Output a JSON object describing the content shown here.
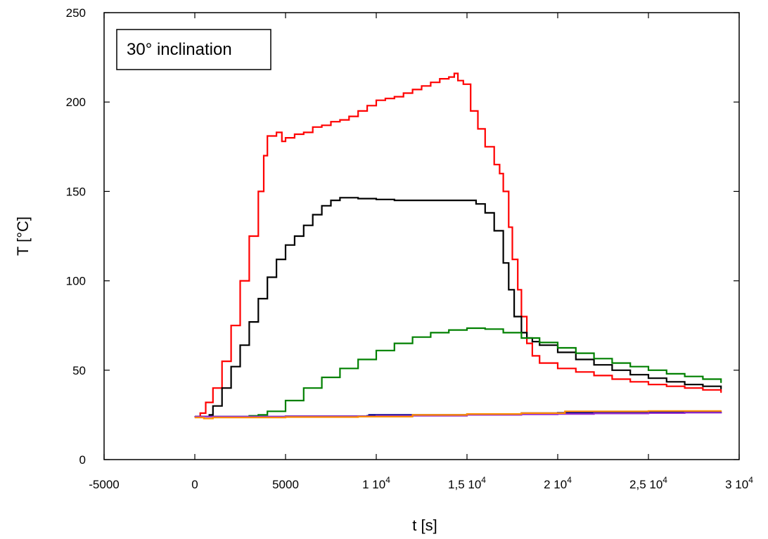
{
  "chart_data": {
    "type": "line",
    "title": "",
    "annotation": "30° inclination",
    "xlabel": "t  [s]",
    "ylabel": "T [°C]",
    "xlim": [
      -5000,
      30000
    ],
    "ylim": [
      0,
      250
    ],
    "grid": false,
    "x_ticks": [
      {
        "value": -5000,
        "label": "-5000"
      },
      {
        "value": 0,
        "label": "0"
      },
      {
        "value": 5000,
        "label": "5000"
      },
      {
        "value": 10000,
        "label": "1 10",
        "exp": "4"
      },
      {
        "value": 15000,
        "label": "1,5 10",
        "exp": "4"
      },
      {
        "value": 20000,
        "label": "2 10",
        "exp": "4"
      },
      {
        "value": 25000,
        "label": "2,5 10",
        "exp": "4"
      },
      {
        "value": 30000,
        "label": "3 10",
        "exp": "4"
      }
    ],
    "y_ticks": [
      {
        "value": 0,
        "label": "0"
      },
      {
        "value": 50,
        "label": "50"
      },
      {
        "value": 100,
        "label": "100"
      },
      {
        "value": 150,
        "label": "150"
      },
      {
        "value": 200,
        "label": "200"
      },
      {
        "value": 250,
        "label": "250"
      }
    ],
    "series": [
      {
        "color": "#ff0000",
        "x": [
          0,
          300,
          600,
          1000,
          1500,
          2000,
          2500,
          3000,
          3500,
          3800,
          4000,
          4500,
          4800,
          5000,
          5500,
          6000,
          6500,
          7000,
          7500,
          8000,
          8500,
          9000,
          9500,
          10000,
          10500,
          11000,
          11500,
          12000,
          12500,
          13000,
          13500,
          14000,
          14300,
          14500,
          14800,
          15200,
          15600,
          16000,
          16500,
          16800,
          17000,
          17300,
          17500,
          17800,
          18000,
          18300,
          18600,
          19000,
          20000,
          21000,
          22000,
          23000,
          24000,
          25000,
          26000,
          27000,
          28000,
          29000
        ],
        "y": [
          24,
          26,
          32,
          40,
          55,
          75,
          100,
          125,
          150,
          170,
          181,
          183,
          178,
          180,
          182,
          183,
          186,
          187,
          189,
          190,
          192,
          195,
          198,
          201,
          202,
          203,
          205,
          207,
          209,
          211,
          213,
          214,
          216,
          212,
          210,
          195,
          185,
          175,
          165,
          160,
          150,
          130,
          112,
          95,
          80,
          65,
          58,
          54,
          51,
          49,
          47,
          45,
          43.5,
          42,
          41,
          40,
          39,
          37.5
        ]
      },
      {
        "color": "#000000",
        "x": [
          0,
          500,
          800,
          1000,
          1500,
          2000,
          2500,
          3000,
          3500,
          4000,
          4500,
          5000,
          5500,
          6000,
          6500,
          7000,
          7500,
          8000,
          8500,
          9000,
          10000,
          11000,
          12000,
          13000,
          14000,
          15000,
          15500,
          16000,
          16500,
          17000,
          17300,
          17600,
          18000,
          18300,
          18600,
          19000,
          20000,
          21000,
          22000,
          23000,
          24000,
          25000,
          26000,
          27000,
          28000,
          29000
        ],
        "y": [
          24,
          24,
          25,
          30,
          40,
          52,
          64,
          77,
          90,
          102,
          112,
          120,
          125,
          131,
          137,
          142,
          145,
          146.5,
          146.5,
          146,
          145.5,
          145,
          145,
          145,
          145,
          145,
          143,
          138,
          128,
          110,
          95,
          80,
          71,
          68,
          66,
          64,
          60,
          56,
          53,
          50,
          47.5,
          45.5,
          43.5,
          42,
          41,
          39.5
        ]
      },
      {
        "color": "#008000",
        "x": [
          0,
          2000,
          3000,
          3500,
          4000,
          5000,
          6000,
          7000,
          8000,
          9000,
          10000,
          11000,
          12000,
          13000,
          14000,
          15000,
          16000,
          17000,
          18000,
          19000,
          20000,
          21000,
          22000,
          23000,
          24000,
          25000,
          26000,
          27000,
          28000,
          29000
        ],
        "y": [
          24,
          24,
          24.5,
          25,
          27,
          33,
          40,
          46,
          51,
          56,
          61,
          65,
          68.5,
          71,
          72.5,
          73.5,
          73,
          71,
          68,
          65.5,
          62.5,
          59.5,
          56.5,
          54,
          52,
          50,
          48,
          46.5,
          45,
          43
        ]
      },
      {
        "color": "#00008b",
        "x": [
          0,
          5000,
          9500,
          9600,
          15000,
          18000,
          20000,
          25000,
          29000
        ],
        "y": [
          24,
          24.3,
          24.5,
          25,
          25.5,
          26,
          26.2,
          26.5,
          26.7
        ]
      },
      {
        "color": "#9932cc",
        "x": [
          0,
          5000,
          10000,
          15000,
          18000,
          20000,
          22000,
          25000,
          27000,
          29000
        ],
        "y": [
          24,
          24.2,
          24.5,
          25,
          25.3,
          25.5,
          25.8,
          26,
          26.2,
          26.4
        ]
      },
      {
        "color": "#ff8c00",
        "x": [
          0,
          500,
          1000,
          5000,
          9000,
          11900,
          12000,
          15000,
          18000,
          20300,
          20400,
          25000,
          29000
        ],
        "y": [
          23.5,
          23,
          23.5,
          23.8,
          24,
          24,
          25,
          25.5,
          26,
          26,
          27,
          27.2,
          27.4
        ]
      }
    ]
  }
}
